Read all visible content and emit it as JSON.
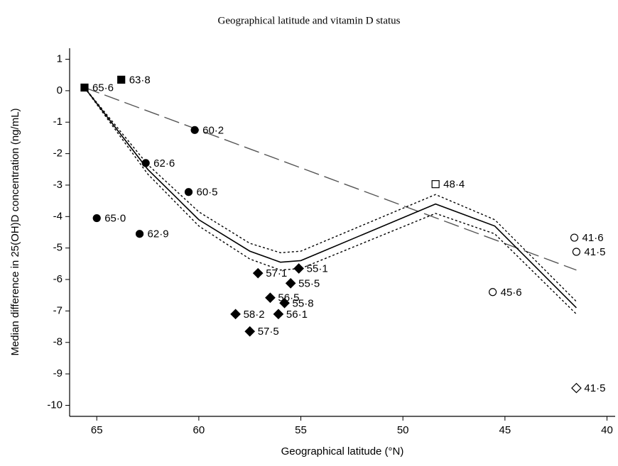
{
  "chart_data": {
    "type": "scatter",
    "title": "Geographical latitude and vitamin D status",
    "x_label": "Geographical latitude (°N)",
    "y_label": "Median difference in 25(OH)D concentration (ng/mL)",
    "xlim": [
      66.33,
      39.6
    ],
    "ylim": [
      -10.35,
      1.35
    ],
    "xticks": [
      65,
      60,
      55,
      50,
      45,
      40
    ],
    "yticks": [
      1,
      0,
      -1,
      -2,
      -3,
      -4,
      -5,
      -6,
      -7,
      -8,
      -9,
      -10
    ],
    "grid": false,
    "series": [
      {
        "marker": "square",
        "filled": true,
        "color": "#000000",
        "x": [
          65.6,
          63.8
        ],
        "values": [
          0.1,
          0.35
        ],
        "value_labels": [
          "65·6",
          "63·8"
        ]
      },
      {
        "marker": "circle",
        "filled": true,
        "color": "#000000",
        "x": [
          60.2,
          62.6,
          60.5,
          65.0,
          62.9
        ],
        "values": [
          -1.25,
          -2.3,
          -3.22,
          -4.05,
          -4.55
        ],
        "value_labels": [
          "60·2",
          "62·6",
          "60·5",
          "65·0",
          "62·9"
        ]
      },
      {
        "marker": "diamond",
        "filled": true,
        "color": "#000000",
        "x": [
          57.1,
          55.1,
          55.5,
          56.5,
          55.8,
          58.2,
          56.1,
          57.5
        ],
        "values": [
          -5.8,
          -5.65,
          -6.12,
          -6.58,
          -6.75,
          -7.1,
          -7.1,
          -7.65
        ],
        "value_labels": [
          "57·1",
          "55·1",
          "55·5",
          "56·5",
          "55·8",
          "58·2",
          "56·1",
          "57·5"
        ]
      },
      {
        "marker": "square",
        "filled": false,
        "color": "#000000",
        "x": [
          48.4
        ],
        "values": [
          -2.97
        ],
        "value_labels": [
          "48·4"
        ]
      },
      {
        "marker": "circle",
        "filled": false,
        "color": "#000000",
        "x": [
          41.6,
          41.5,
          45.6
        ],
        "values": [
          -4.67,
          -5.12,
          -6.4
        ],
        "value_labels": [
          "41·6",
          "41·5",
          "45·6"
        ]
      },
      {
        "marker": "diamond",
        "filled": false,
        "color": "#000000",
        "x": [
          41.5
        ],
        "values": [
          -9.45
        ],
        "value_labels": [
          "41·5"
        ]
      }
    ],
    "lines": [
      {
        "style": "dashed",
        "color": "#555555",
        "x": [
          65.6,
          41.5
        ],
        "values": [
          0.1,
          -5.7
        ]
      },
      {
        "style": "solid",
        "color": "#000000",
        "x": [
          65.6,
          62.5,
          60,
          57.5,
          56,
          55,
          48.4,
          45.5,
          41.5
        ],
        "values": [
          0.1,
          -2.5,
          -4.1,
          -5.1,
          -5.45,
          -5.4,
          -3.6,
          -4.3,
          -6.9
        ]
      },
      {
        "style": "dotted",
        "color": "#000000",
        "x": [
          65.6,
          62.5,
          60,
          57.5,
          56,
          55,
          48.4,
          45.5,
          41.5
        ],
        "values": [
          0.1,
          -2.35,
          -3.85,
          -4.85,
          -5.15,
          -5.1,
          -3.3,
          -4.1,
          -6.7
        ]
      },
      {
        "style": "dotted",
        "color": "#000000",
        "x": [
          65.6,
          62.5,
          60,
          57.5,
          56,
          55,
          48.4,
          45.5,
          41.5
        ],
        "values": [
          0.1,
          -2.65,
          -4.3,
          -5.35,
          -5.7,
          -5.65,
          -3.9,
          -4.55,
          -7.1
        ]
      }
    ]
  }
}
